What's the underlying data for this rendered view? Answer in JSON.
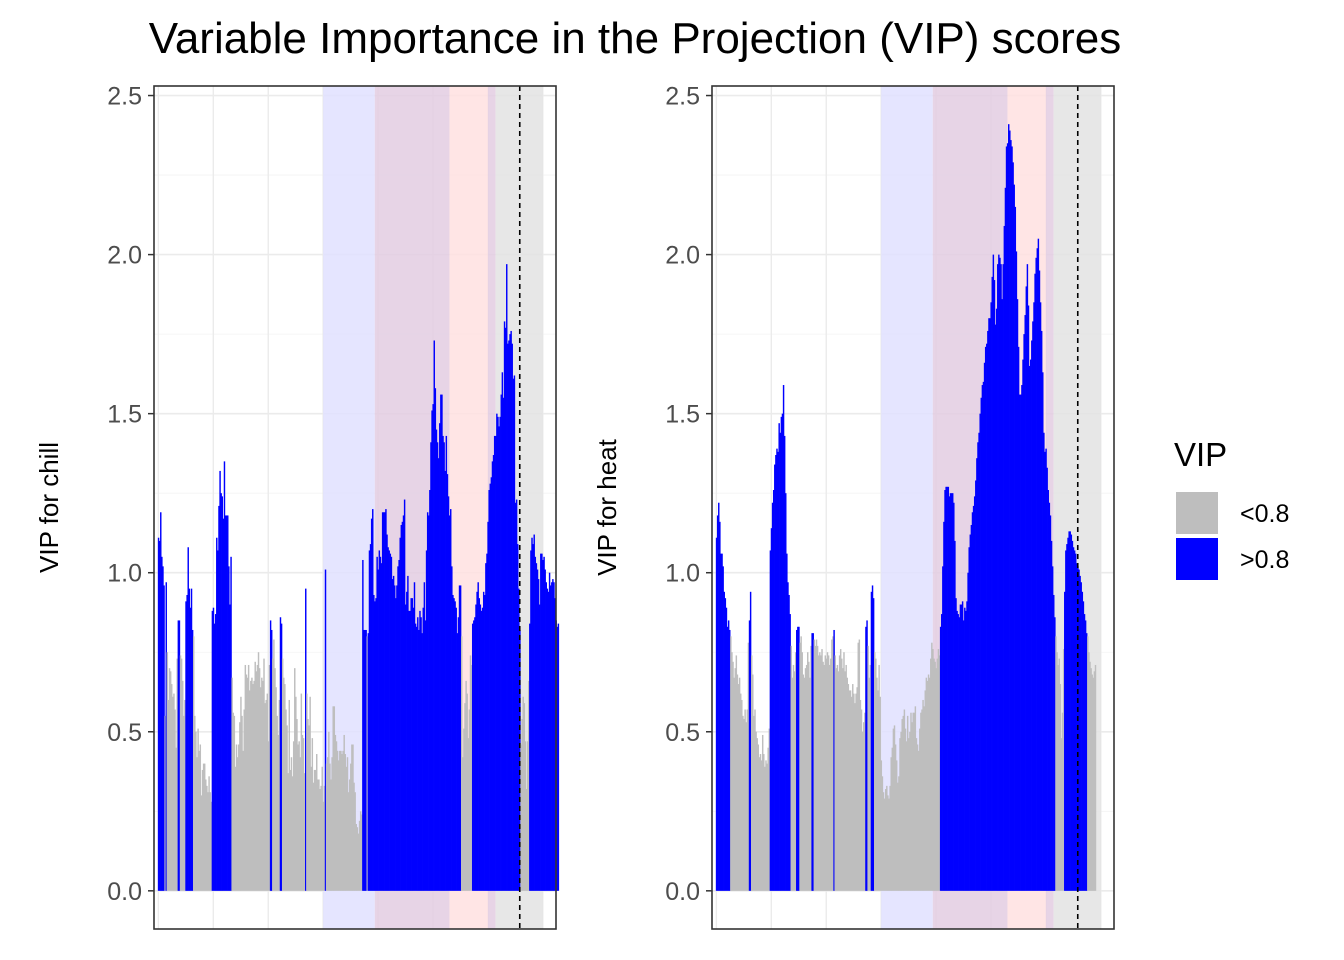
{
  "chart_data": {
    "type": "bar",
    "title": "Variable Importance in the Projection (VIP) scores",
    "legend": {
      "title": "VIP",
      "position": "right",
      "entries": [
        {
          "label": "<0.8",
          "color": "#bebebe"
        },
        {
          "label": ">0.8",
          "color": "#0000ff"
        }
      ]
    },
    "threshold": 0.8,
    "colors": {
      "below": "#bebebe",
      "above": "#0000ff",
      "chill_band": "#e0e0ff",
      "overlap_band": "#e3cde2",
      "heat_band": "#ffe1e1",
      "end_band": "#e3e3e3",
      "dashed_line": "#000000"
    },
    "ylim": [
      -0.12,
      2.53
    ],
    "yticks": [
      "0.0",
      "0.5",
      "1.0",
      "1.5",
      "2.0",
      "2.5"
    ],
    "grid": true,
    "panels": [
      {
        "ylabel": "VIP for chill",
        "ylim": [
          -0.12,
          2.53
        ],
        "xlim": [
          -4,
          362
        ],
        "bands": [
          {
            "from": 150,
            "to": 197,
            "color": "chill"
          },
          {
            "from": 197,
            "to": 265,
            "color": "overlap"
          },
          {
            "from": 265,
            "to": 300,
            "color": "heat"
          },
          {
            "from": 300,
            "to": 307,
            "color": "overlap"
          },
          {
            "from": 307,
            "to": 350,
            "color": "end"
          }
        ],
        "dashed_x": 329,
        "values": [
          1.11,
          1.1,
          1.19,
          1.05,
          1.02,
          0.96,
          0.55,
          0.97,
          0.75,
          0.6,
          0.7,
          0.69,
          0.65,
          0.61,
          0.62,
          0.57,
          0.45,
          0.73,
          0.85,
          0.85,
          0.74,
          0.73,
          0.66,
          0.55,
          0.6,
          0.91,
          0.93,
          1.08,
          0.95,
          0.89,
          0.95,
          0.82,
          0.8,
          0.55,
          0.5,
          0.42,
          0.51,
          0.44,
          0.46,
          0.3,
          0.38,
          0.4,
          0.4,
          0.35,
          0.33,
          0.31,
          0.36,
          0.31,
          0.28,
          0.88,
          0.89,
          0.84,
          0.87,
          1.11,
          1.07,
          1.21,
          1.32,
          1.25,
          1.24,
          1.17,
          1.35,
          1.18,
          1.18,
          1.18,
          1.02,
          0.9,
          1.05,
          0.67,
          0.56,
          0.55,
          0.39,
          0.46,
          0.42,
          0.46,
          0.53,
          0.61,
          0.55,
          0.44,
          0.57,
          0.71,
          0.68,
          0.67,
          0.71,
          0.63,
          0.66,
          0.67,
          0.65,
          0.66,
          0.72,
          0.69,
          0.71,
          0.75,
          0.7,
          0.64,
          0.67,
          0.66,
          0.73,
          0.59,
          0.6,
          0.62,
          0.47,
          0.71,
          0.85,
          0.82,
          0.73,
          0.79,
          0.7,
          0.64,
          0.55,
          0.49,
          0.6,
          0.86,
          0.84,
          0.73,
          0.67,
          0.65,
          0.57,
          0.52,
          0.37,
          0.6,
          0.38,
          0.42,
          0.36,
          0.47,
          0.7,
          0.61,
          0.54,
          0.46,
          0.47,
          0.42,
          0.62,
          0.49,
          0.48,
          0.37,
          0.95,
          0.62,
          0.54,
          0.52,
          0.61,
          0.39,
          0.48,
          0.34,
          0.38,
          0.38,
          0.43,
          0.35,
          0.35,
          0.32,
          0.33,
          0.39,
          0.28,
          0.33,
          1.01,
          0.4,
          0.42,
          0.5,
          0.4,
          0.35,
          0.42,
          0.58,
          0.58,
          0.49,
          0.47,
          0.44,
          0.41,
          0.44,
          0.44,
          0.43,
          0.44,
          0.49,
          0.43,
          0.39,
          0.42,
          0.31,
          0.35,
          0.4,
          0.46,
          0.46,
          0.34,
          0.31,
          0.21,
          0.2,
          0.18,
          0.22,
          0.25,
          0.24,
          1.04,
          0.82,
          0.82,
          0.82,
          0.8,
          0.81,
          1.07,
          1.09,
          1.17,
          1.2,
          0.93,
          0.91,
          0.92,
          1.05,
          1.01,
          1.07,
          1.05,
          1.03,
          1.19,
          1.19,
          1.19,
          1.2,
          1.12,
          1.08,
          1.07,
          1.06,
          1.05,
          0.98,
          0.99,
          0.96,
          0.92,
          0.96,
          1.02,
          1.04,
          1.11,
          1.15,
          1.16,
          1.18,
          1.23,
          0.9,
          0.94,
          0.99,
          0.88,
          0.88,
          0.92,
          0.92,
          0.89,
          0.97,
          0.84,
          0.83,
          0.86,
          0.82,
          0.88,
          0.86,
          0.81,
          0.89,
          0.97,
          0.85,
          1.07,
          1.19,
          1.18,
          1.26,
          1.41,
          1.51,
          1.53,
          1.73,
          1.58,
          1.45,
          1.41,
          1.36,
          1.47,
          1.56,
          1.56,
          1.43,
          1.41,
          1.32,
          1.43,
          1.31,
          1.24,
          1.18,
          1.2,
          1.02,
          0.93,
          0.92,
          0.91,
          0.89,
          0.81,
          0.86,
          0.96,
          0.96,
          0.8,
          0.42,
          0.51,
          0.59,
          0.66,
          0.62,
          0.48,
          0.57,
          0.74,
          0.71,
          0.84,
          0.85,
          0.86,
          0.9,
          0.94,
          0.97,
          0.92,
          0.9,
          0.88,
          0.89,
          0.94,
          0.93,
          1.03,
          1.06,
          1.16,
          1.26,
          1.28,
          1.3,
          1.35,
          1.37,
          1.43,
          1.43,
          1.5,
          1.49,
          1.46,
          1.49,
          1.56,
          1.63,
          1.55,
          1.79,
          1.77,
          1.97,
          1.72,
          1.73,
          1.75,
          1.76,
          1.72,
          1.61,
          1.62,
          1.22,
          1.23,
          1.09,
          0.95,
          0.82,
          0.46,
          0.54,
          0.61,
          0.59,
          0.47,
          0.32,
          0.47,
          0.66,
          0.84,
          1.07,
          1.11,
          1.09,
          1.12,
          1.05,
          1.03,
          1.01,
          0.98,
          0.9,
          1.06,
          1.06,
          1.04,
          1.05,
          1.01,
          0.97,
          0.95,
          0.94,
          1.0,
          0.96,
          0.97,
          0.98,
          0.97,
          0.92,
          0.85,
          0.83,
          0.84
        ]
      },
      {
        "ylabel": "VIP for heat",
        "ylim": [
          -0.12,
          2.53
        ],
        "xlim": [
          -4,
          362
        ],
        "bands": [
          {
            "from": 150,
            "to": 197,
            "color": "chill"
          },
          {
            "from": 197,
            "to": 265,
            "color": "overlap"
          },
          {
            "from": 265,
            "to": 300,
            "color": "heat"
          },
          {
            "from": 300,
            "to": 307,
            "color": "overlap"
          },
          {
            "from": 307,
            "to": 350,
            "color": "end"
          }
        ],
        "dashed_x": 329,
        "values": [
          1.11,
          1.18,
          1.22,
          1.16,
          1.06,
          1.06,
          1.02,
          0.94,
          0.92,
          0.89,
          0.83,
          0.85,
          0.82,
          0.8,
          0.75,
          0.72,
          0.67,
          0.7,
          0.74,
          0.68,
          0.65,
          0.67,
          0.62,
          0.6,
          0.55,
          0.54,
          0.57,
          0.53,
          0.57,
          0.78,
          0.85,
          0.94,
          0.74,
          0.68,
          0.55,
          0.57,
          0.5,
          0.48,
          0.46,
          0.42,
          0.43,
          0.41,
          0.49,
          0.43,
          0.39,
          0.41,
          0.4,
          0.45,
          0.51,
          1.07,
          1.14,
          1.22,
          1.26,
          1.34,
          1.37,
          1.39,
          1.38,
          1.47,
          1.44,
          1.49,
          1.5,
          1.59,
          1.43,
          1.25,
          1.06,
          0.97,
          0.93,
          0.87,
          0.77,
          0.67,
          0.71,
          0.69,
          0.75,
          0.82,
          0.83,
          0.83,
          0.78,
          0.8,
          0.75,
          0.68,
          0.67,
          0.7,
          0.71,
          0.75,
          0.72,
          0.67,
          0.77,
          0.81,
          0.81,
          0.79,
          0.77,
          0.79,
          0.77,
          0.74,
          0.75,
          0.74,
          0.76,
          0.72,
          0.71,
          0.74,
          0.73,
          0.75,
          0.74,
          0.71,
          0.73,
          0.79,
          0.8,
          0.82,
          0.74,
          0.7,
          0.71,
          0.69,
          0.74,
          0.76,
          0.73,
          0.7,
          0.75,
          0.69,
          0.71,
          0.67,
          0.65,
          0.63,
          0.63,
          0.61,
          0.65,
          0.62,
          0.59,
          0.62,
          0.64,
          0.78,
          0.79,
          0.6,
          0.57,
          0.5,
          0.53,
          0.56,
          0.83,
          0.85,
          0.77,
          0.67,
          0.71,
          0.94,
          0.96,
          0.92,
          0.75,
          0.73,
          0.67,
          0.63,
          0.71,
          0.61,
          0.41,
          0.36,
          0.31,
          0.29,
          0.32,
          0.33,
          0.3,
          0.29,
          0.33,
          0.42,
          0.45,
          0.51,
          0.52,
          0.46,
          0.41,
          0.34,
          0.36,
          0.48,
          0.5,
          0.54,
          0.55,
          0.57,
          0.51,
          0.47,
          0.55,
          0.48,
          0.5,
          0.56,
          0.53,
          0.56,
          0.56,
          0.58,
          0.48,
          0.46,
          0.44,
          0.51,
          0.56,
          0.57,
          0.6,
          0.58,
          0.63,
          0.67,
          0.66,
          0.68,
          0.67,
          0.73,
          0.78,
          0.76,
          0.73,
          0.72,
          0.7,
          0.73,
          0.76,
          0.74,
          0.83,
          0.87,
          1.02,
          1.16,
          1.26,
          1.27,
          1.27,
          1.27,
          1.24,
          1.25,
          1.25,
          1.25,
          1.22,
          1.1,
          0.92,
          0.88,
          0.87,
          0.86,
          0.9,
          0.9,
          0.91,
          0.85,
          0.89,
          0.88,
          0.91,
          1.0,
          1.08,
          1.12,
          1.15,
          1.19,
          1.21,
          1.24,
          1.29,
          1.36,
          1.41,
          1.44,
          1.5,
          1.55,
          1.59,
          1.6,
          1.66,
          1.71,
          1.72,
          1.76,
          1.8,
          1.8,
          1.85,
          1.93,
          2.0,
          1.92,
          1.78,
          1.83,
          1.97,
          2.0,
          1.99,
          1.97,
          1.86,
          1.97,
          2.09,
          2.21,
          2.34,
          2.35,
          2.41,
          2.39,
          2.36,
          2.34,
          2.29,
          2.22,
          2.15,
          2.01,
          1.86,
          1.71,
          1.56,
          1.56,
          1.59,
          1.67,
          1.75,
          1.81,
          1.9,
          1.97,
          1.84,
          1.65,
          1.67,
          1.73,
          1.79,
          1.85,
          1.94,
          1.99,
          2.02,
          2.05,
          1.95,
          1.85,
          1.76,
          1.63,
          1.44,
          1.38,
          1.39,
          1.33,
          1.26,
          1.22,
          1.18,
          1.1,
          1.02,
          0.93,
          0.86,
          0.8,
          0.75,
          0.71,
          0.73,
          0.65,
          0.48,
          0.56,
          0.76,
          0.94,
          1.07,
          1.09,
          1.11,
          1.13,
          1.13,
          1.12,
          1.1,
          1.08,
          1.07,
          1.06,
          1.03,
          1.02,
          1.01,
          0.99,
          0.97,
          0.94,
          0.91,
          0.87,
          0.85,
          0.81,
          0.8,
          0.75,
          0.72,
          0.7,
          0.68,
          0.67,
          0.69,
          0.71
        ]
      }
    ]
  }
}
